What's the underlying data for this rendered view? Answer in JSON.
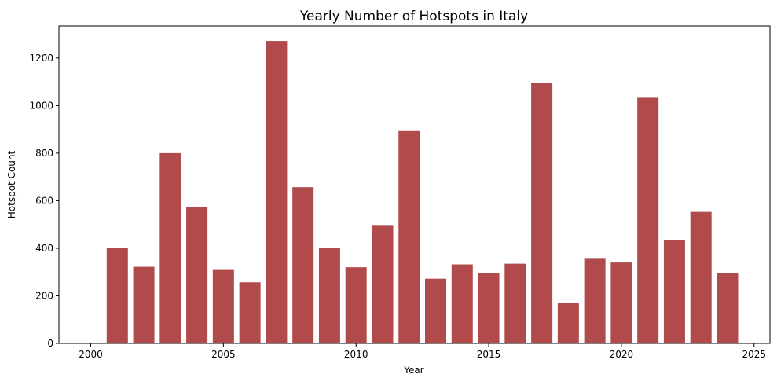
{
  "chart_data": {
    "type": "bar",
    "title": "Yearly Number of Hotspots in Italy",
    "xlabel": "Year",
    "ylabel": "Hotspot Count",
    "x": [
      2000,
      2001,
      2002,
      2003,
      2004,
      2005,
      2006,
      2007,
      2008,
      2009,
      2010,
      2011,
      2012,
      2013,
      2014,
      2015,
      2016,
      2017,
      2018,
      2019,
      2020,
      2021,
      2022,
      2023,
      2024
    ],
    "values": [
      2,
      400,
      322,
      800,
      575,
      312,
      257,
      1272,
      657,
      403,
      320,
      498,
      893,
      272,
      332,
      297,
      335,
      1095,
      170,
      359,
      340,
      1033,
      435,
      553,
      297
    ],
    "xlim": [
      1998.8,
      2025.6
    ],
    "ylim": [
      0,
      1335
    ],
    "xticks": [
      2000,
      2005,
      2010,
      2015,
      2020,
      2025
    ],
    "yticks": [
      0,
      200,
      400,
      600,
      800,
      1000,
      1200
    ],
    "grid": false,
    "legend": "none",
    "bar_color": "#b14b4b"
  }
}
